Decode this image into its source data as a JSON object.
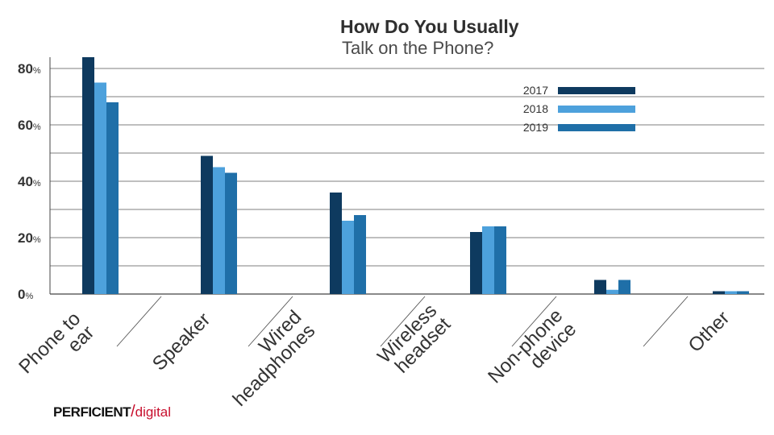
{
  "title": "How Do You Usually",
  "subtitle": "Talk on the Phone?",
  "brand": {
    "part1": "PERFICIENT",
    "slash": "/",
    "part2": "digital"
  },
  "colors": {
    "2017": "#0e3a5f",
    "2018": "#4da1dc",
    "2019": "#1f6fa8",
    "brand_red": "#c8102e",
    "grid": "#555555",
    "axis_text": "#333333"
  },
  "chart_data": {
    "type": "bar",
    "title": "How Do You Usually Talk on the Phone?",
    "categories": [
      [
        "Phone to",
        "ear"
      ],
      [
        "Speaker"
      ],
      [
        "Wired",
        "headphones"
      ],
      [
        "Wireless",
        "headset"
      ],
      [
        "Non-phone",
        "device"
      ],
      [
        "Other"
      ]
    ],
    "series": [
      {
        "name": "2017",
        "values": [
          84,
          49,
          36,
          22,
          5,
          1
        ]
      },
      {
        "name": "2018",
        "values": [
          75,
          45,
          26,
          24,
          1.5,
          1
        ]
      },
      {
        "name": "2019",
        "values": [
          68,
          43,
          28,
          24,
          5,
          1
        ]
      }
    ],
    "yticks": [
      {
        "num": "80",
        "unit": "%",
        "value": 80
      },
      {
        "num": "60",
        "unit": "%",
        "value": 60
      },
      {
        "num": "40",
        "unit": "%",
        "value": 40
      },
      {
        "num": "20",
        "unit": "%",
        "value": 20
      },
      {
        "num": "0",
        "unit": "%",
        "value": 0
      }
    ],
    "gridlines": [
      0,
      10,
      20,
      30,
      40,
      50,
      60,
      70,
      80
    ],
    "ylim": [
      0,
      84
    ],
    "legend_position": "top-right",
    "grid": true
  }
}
